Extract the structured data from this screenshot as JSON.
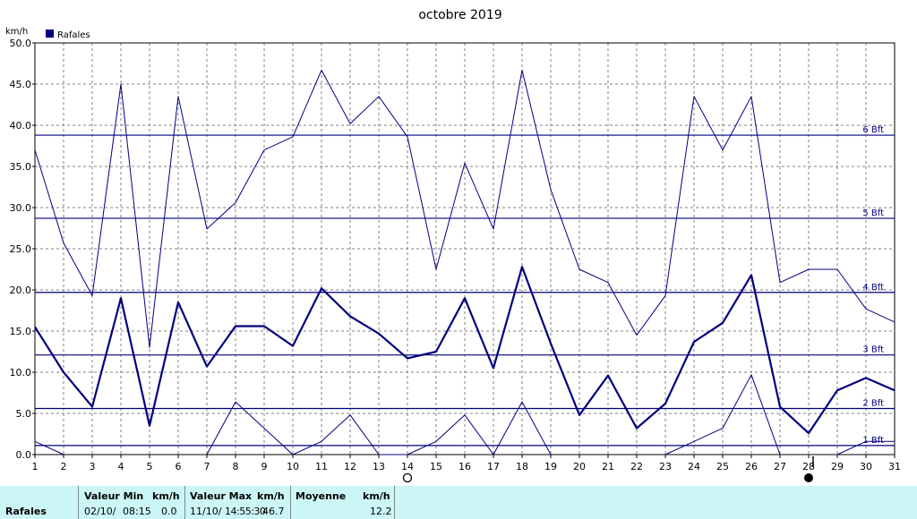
{
  "chart_data": {
    "type": "line",
    "title": "octobre 2019",
    "ylabel": "km/h",
    "x": [
      1,
      2,
      3,
      4,
      5,
      6,
      7,
      8,
      9,
      10,
      11,
      12,
      13,
      14,
      15,
      16,
      17,
      18,
      19,
      20,
      21,
      22,
      23,
      24,
      25,
      26,
      27,
      28,
      29,
      30,
      31
    ],
    "xlim": [
      1,
      31
    ],
    "ylim": [
      0,
      50
    ],
    "yticks": [
      "0.0",
      "5.0",
      "10.0",
      "15.0",
      "20.0",
      "25.0",
      "30.0",
      "35.0",
      "40.0",
      "45.0",
      "50.0"
    ],
    "grid": true,
    "legend": "top-left",
    "series": [
      {
        "name": "Rafales",
        "role": "mean",
        "color": "#00007f",
        "values": [
          15.5,
          10.0,
          5.8,
          19.0,
          3.5,
          18.5,
          10.7,
          15.6,
          15.6,
          13.2,
          20.2,
          16.8,
          14.7,
          11.7,
          12.5,
          19.0,
          10.5,
          22.8,
          13.5,
          4.8,
          9.6,
          3.2,
          6.2,
          13.7,
          16.0,
          21.8,
          5.8,
          2.6,
          7.8,
          9.3,
          7.8
        ]
      },
      {
        "role": "max",
        "color": "#00007f",
        "values": [
          37.0,
          25.7,
          19.3,
          45.0,
          13.0,
          43.5,
          27.4,
          30.6,
          37.0,
          38.6,
          46.7,
          40.2,
          43.5,
          38.6,
          22.5,
          35.4,
          27.4,
          46.7,
          32.2,
          22.5,
          20.9,
          14.5,
          19.3,
          43.5,
          37.0,
          43.5,
          20.9,
          22.5,
          22.5,
          17.7,
          16.1
        ]
      },
      {
        "role": "min",
        "color": "#00007f",
        "values": [
          1.6,
          0.0,
          null,
          null,
          null,
          null,
          0.0,
          6.4,
          3.2,
          0.0,
          1.6,
          4.8,
          0.0,
          0.0,
          1.6,
          4.8,
          0.0,
          6.4,
          0.0,
          null,
          null,
          null,
          0.0,
          1.6,
          3.2,
          9.7,
          0.0,
          null,
          0.0,
          1.6,
          1.6
        ]
      }
    ],
    "beaufort_lines": [
      {
        "label": "1 Bft",
        "value": 1.1
      },
      {
        "label": "2 Bft",
        "value": 5.6
      },
      {
        "label": "3 Bft",
        "value": 12.1
      },
      {
        "label": "4 Bft",
        "value": 19.7
      },
      {
        "label": "5 Bft",
        "value": 28.7
      },
      {
        "label": "6 Bft",
        "value": 38.8
      }
    ],
    "moon_phases": [
      {
        "day": 14,
        "phase": "full"
      },
      {
        "day": 28,
        "phase": "new"
      }
    ],
    "first_quarter_marker_day": 28
  },
  "summary": {
    "row_label": "Rafales",
    "min_header": "Valeur Min",
    "min_unit": "km/h",
    "min_date": "02/10/",
    "min_time": "08:15",
    "min_value": "0.0",
    "max_header": "Valeur Max",
    "max_unit": "km/h",
    "max_date": "11/10/",
    "max_time": "14:55:30",
    "max_value": "46.7",
    "mean_header": "Moyenne",
    "mean_unit": "km/h",
    "mean_value": "12.2"
  }
}
